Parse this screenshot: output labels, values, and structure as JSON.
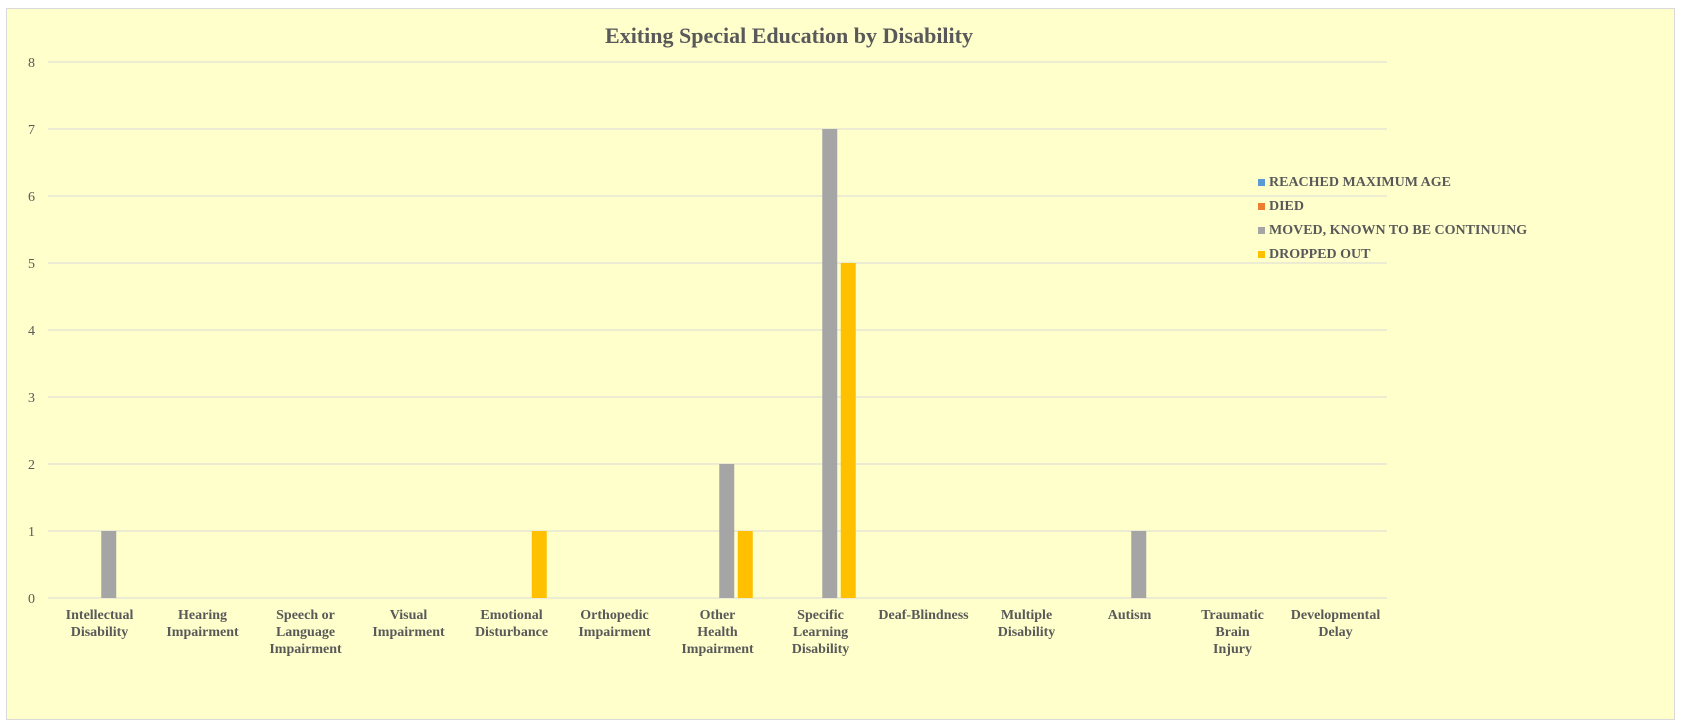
{
  "chart_data": {
    "type": "bar",
    "title": "Exiting Special Education by Disability",
    "xlabel": "",
    "ylabel": "",
    "ylim": [
      0,
      8
    ],
    "yticks": [
      0,
      1,
      2,
      3,
      4,
      5,
      6,
      7,
      8
    ],
    "grid": true,
    "legend_position": "right",
    "categories": [
      "Intellectual Disability",
      "Hearing Impairment",
      "Speech or Language Impairment",
      "Visual Impairment",
      "Emotional Disturbance",
      "Orthopedic Impairment",
      "Other Health Impairment",
      "Specific Learning Disability",
      "Deaf-Blindness",
      "Multiple Disability",
      "Autism",
      "Traumatic Brain Injury",
      "Developmental Delay"
    ],
    "series": [
      {
        "name": "REACHED MAXIMUM AGE",
        "color": "#5b9bd5",
        "values": [
          0,
          0,
          0,
          0,
          0,
          0,
          0,
          0,
          0,
          0,
          0,
          0,
          0
        ]
      },
      {
        "name": "DIED",
        "color": "#ed7d31",
        "values": [
          0,
          0,
          0,
          0,
          0,
          0,
          0,
          0,
          0,
          0,
          0,
          0,
          0
        ]
      },
      {
        "name": "MOVED, KNOWN TO BE CONTINUING",
        "color": "#a5a5a5",
        "values": [
          1,
          0,
          0,
          0,
          0,
          0,
          2,
          7,
          0,
          0,
          1,
          0,
          0
        ]
      },
      {
        "name": "DROPPED OUT",
        "color": "#ffc000",
        "values": [
          0,
          0,
          0,
          0,
          1,
          0,
          1,
          5,
          0,
          0,
          0,
          0,
          0
        ]
      }
    ]
  }
}
